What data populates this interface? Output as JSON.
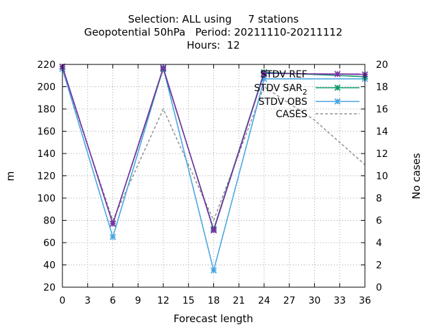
{
  "chart_data": {
    "type": "line",
    "title_lines": [
      "Selection: ALL using     7 stations",
      "Geopotential 50hPa   Period: 20211110-20211112",
      "Hours:  12"
    ],
    "xlabel": "Forecast length",
    "ylabel": "m",
    "y2label": "No cases",
    "xlim": [
      0,
      36
    ],
    "ylim": [
      20,
      220
    ],
    "y2lim": [
      0,
      20
    ],
    "x_ticks": [
      0,
      3,
      6,
      9,
      12,
      15,
      18,
      21,
      24,
      27,
      30,
      33,
      36
    ],
    "y_ticks": [
      20,
      40,
      60,
      80,
      100,
      120,
      140,
      160,
      180,
      200,
      220
    ],
    "y2_ticks": [
      0,
      2,
      4,
      6,
      8,
      10,
      12,
      14,
      16,
      18,
      20
    ],
    "grid": true,
    "legend_position": "top-right",
    "series": [
      {
        "name": "STDV REF",
        "color": "#7b2fa6",
        "marker": "x",
        "axis": "y",
        "x": [
          0,
          6,
          12,
          18,
          24,
          36
        ],
        "y": [
          218,
          77,
          217,
          71,
          212,
          211
        ]
      },
      {
        "name": "STDV SAR",
        "name_subscript": "2",
        "color": "#0a9a6a",
        "marker": "x",
        "axis": "y",
        "x": [
          0,
          6,
          12,
          18,
          24,
          36
        ],
        "y": [
          218,
          77,
          216,
          72,
          213,
          209
        ]
      },
      {
        "name": "STDV OBS",
        "color": "#4aa6e0",
        "marker": "x",
        "axis": "y",
        "x": [
          0,
          6,
          12,
          18,
          24,
          36
        ],
        "y": [
          216,
          65,
          217,
          35,
          207,
          207
        ]
      },
      {
        "name": "CASES",
        "color": "#909090",
        "marker": "none",
        "dashed": true,
        "axis": "y2",
        "x": [
          0,
          6,
          12,
          18,
          24,
          30,
          36
        ],
        "y": [
          19.5,
          6,
          16,
          6,
          18,
          15,
          11
        ]
      }
    ]
  }
}
